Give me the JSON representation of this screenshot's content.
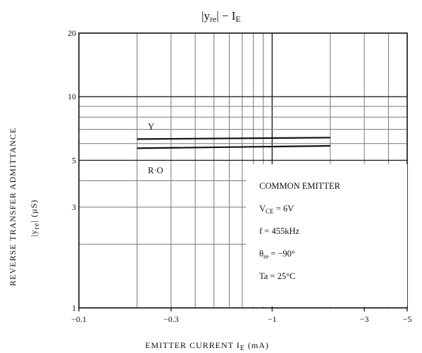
{
  "chart_data": {
    "type": "line",
    "title": "|yre|  −  IE",
    "xlabel": "EMITTER CURRENT IE (mA)",
    "ylabel": "REVERSE TRANSFER ADMITTANCE |yre| (µS)",
    "x_scale": "log",
    "y_scale": "log",
    "xlim": [
      -0.1,
      -5
    ],
    "ylim": [
      1,
      20
    ],
    "x_ticks": [
      -0.1,
      -0.3,
      -1,
      -3,
      -5
    ],
    "x_tick_labels": [
      "−0.1",
      "−0.3",
      "−1",
      "−3",
      "−5"
    ],
    "y_ticks": [
      1,
      3,
      5,
      10,
      20
    ],
    "y_tick_labels": [
      "1",
      "3",
      "5",
      "10",
      "20"
    ],
    "grid": true,
    "series": [
      {
        "name": "Y",
        "x": [
          -0.2,
          -2
        ],
        "y": [
          6.3,
          6.4
        ]
      },
      {
        "name": "R·O",
        "x": [
          -0.2,
          -2
        ],
        "y": [
          5.7,
          5.85
        ]
      }
    ],
    "conditions": {
      "line1": "COMMON EMITTER",
      "line2": "VCE = 6V",
      "line3": "f = 455kHz",
      "line4": "θre = −90°",
      "line5": "Ta = 25°C"
    }
  }
}
